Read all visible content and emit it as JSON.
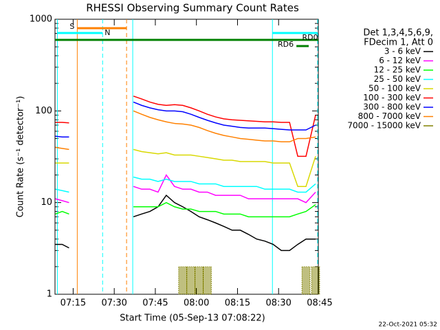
{
  "chart_data": {
    "type": "line",
    "title": "RHESSI Observing Summary Count Rates",
    "xlabel": "Start Time (05-Sep-13 07:08:22)",
    "ylabel": "Count Rate (s⁻¹ detector⁻¹)",
    "footer": "22-Oct-2021 05:32",
    "legend_header": [
      "Det 1,3,4,5,6,9,",
      "FDecim 1, Att 0"
    ],
    "log_y": true,
    "xlim": [
      428.37,
      524.5
    ],
    "ylim": [
      1,
      1000
    ],
    "yticks": [
      1,
      10,
      100,
      1000
    ],
    "yminorticks": [
      2,
      3,
      4,
      5,
      6,
      7,
      8,
      9,
      20,
      30,
      40,
      50,
      60,
      70,
      80,
      90,
      200,
      300,
      400,
      500,
      600,
      700,
      800,
      900
    ],
    "xticks": [
      {
        "value": 435,
        "label": "07:15"
      },
      {
        "value": 450,
        "label": "07:30"
      },
      {
        "value": 465,
        "label": "07:45"
      },
      {
        "value": 480,
        "label": "08:00"
      },
      {
        "value": 495,
        "label": "08:15"
      },
      {
        "value": 510,
        "label": "08:30"
      },
      {
        "value": 525,
        "label": "08:45"
      }
    ],
    "x": [
      428.5,
      431,
      433.5,
      435,
      457,
      460,
      463,
      466,
      469,
      472,
      475,
      478,
      481,
      484,
      487,
      490,
      493,
      496,
      499,
      502,
      505,
      508,
      511,
      514,
      517,
      520,
      523.5
    ],
    "series": [
      {
        "name": "3 - 6 keV",
        "color": "#000000",
        "values": [
          3.5,
          3.5,
          3.2,
          null,
          7,
          7.5,
          8,
          9,
          12,
          10,
          9,
          8,
          7,
          6.5,
          6,
          5.5,
          5,
          5,
          4.5,
          4,
          3.8,
          3.5,
          3,
          3,
          3.5,
          4,
          4
        ]
      },
      {
        "name": "6 - 12 keV",
        "color": "#ff00ff",
        "values": [
          11,
          10.5,
          10,
          null,
          15,
          14,
          14,
          13,
          20,
          15,
          14,
          14,
          13,
          13,
          12,
          12,
          12,
          12,
          11,
          11,
          11,
          11,
          11,
          11,
          11,
          10,
          13
        ]
      },
      {
        "name": "12 - 25 keV",
        "color": "#00ff00",
        "values": [
          7.5,
          8,
          7.5,
          null,
          9,
          9,
          9,
          9,
          10,
          9,
          8.5,
          8.5,
          8,
          8,
          8,
          7.5,
          7.5,
          7.5,
          7,
          7,
          7,
          7,
          7,
          7,
          7.5,
          8,
          9.5
        ]
      },
      {
        "name": "25 - 50 keV",
        "color": "#00ffff",
        "values": [
          14,
          13.5,
          13,
          null,
          19,
          18,
          18,
          17,
          18,
          17,
          17,
          17,
          16,
          16,
          16,
          15,
          15,
          15,
          15,
          15,
          14,
          14,
          14,
          14,
          13,
          13,
          16
        ]
      },
      {
        "name": "50 - 100 keV",
        "color": "#d8d800",
        "values": [
          27,
          27,
          27,
          null,
          38,
          36,
          35,
          34,
          35,
          33,
          33,
          33,
          32,
          31,
          30,
          29,
          29,
          28,
          28,
          28,
          28,
          27,
          27,
          27,
          15,
          15,
          32
        ]
      },
      {
        "name": "100 - 300 keV",
        "color": "#ff0000",
        "values": [
          75,
          75,
          74,
          null,
          145,
          135,
          125,
          118,
          115,
          117,
          115,
          108,
          100,
          92,
          86,
          82,
          80,
          79,
          78,
          77,
          76,
          76,
          75,
          75,
          32,
          32,
          90
        ]
      },
      {
        "name": "300 - 800 keV",
        "color": "#0000ff",
        "values": [
          53,
          52,
          52,
          null,
          125,
          115,
          108,
          103,
          100,
          100,
          98,
          92,
          85,
          79,
          74,
          70,
          68,
          66,
          65,
          65,
          65,
          64,
          63,
          62,
          62,
          62,
          70
        ]
      },
      {
        "name": "800 - 7000 keV",
        "color": "#ff8000",
        "values": [
          40,
          39,
          38,
          null,
          100,
          92,
          85,
          80,
          76,
          73,
          72,
          70,
          66,
          61,
          57,
          54,
          52,
          50,
          49,
          48,
          47,
          47,
          46,
          46,
          50,
          50,
          52
        ]
      },
      {
        "name": "7000 - 15000 keV",
        "color": "#808000",
        "drawstyle": "spikes",
        "values": [
          null,
          null,
          null,
          null,
          null,
          null,
          null,
          null,
          null,
          null,
          2,
          2,
          2,
          2,
          null,
          null,
          null,
          null,
          null,
          null,
          null,
          null,
          null,
          null,
          null,
          2,
          2
        ]
      }
    ],
    "events": [
      {
        "time": 429.25,
        "color": "#00ffff",
        "dashed": false
      },
      {
        "time": 436.5,
        "color": "#ff8000",
        "dashed": false
      },
      {
        "time": 445.75,
        "color": "#00ffff",
        "dashed": true
      },
      {
        "time": 454.5,
        "color": "#ff8000",
        "dashed": true
      },
      {
        "time": 456.75,
        "color": "#00ffff",
        "dashed": false
      },
      {
        "time": 507.75,
        "color": "#00ffff",
        "dashed": false
      },
      {
        "time": 524.25,
        "color": "#00ffff",
        "dashed": true
      }
    ],
    "flags": [
      {
        "label": "S",
        "color": "#ff8000",
        "start": 436.5,
        "end": 454.5
      },
      {
        "label": "N",
        "color": "#00ffff",
        "start": 429.25,
        "end": 445.75
      },
      {
        "color": "#00ffff",
        "start": 507.75,
        "end": 524.25
      },
      {
        "color": "#008000",
        "start": 428.37,
        "end": 524.5
      },
      {
        "label": "RD0",
        "color": "#008000",
        "start": 516.5,
        "end": 523.5
      },
      {
        "label": "RD6",
        "color": "#008000",
        "start": 516.5,
        "end": 521
      }
    ]
  }
}
